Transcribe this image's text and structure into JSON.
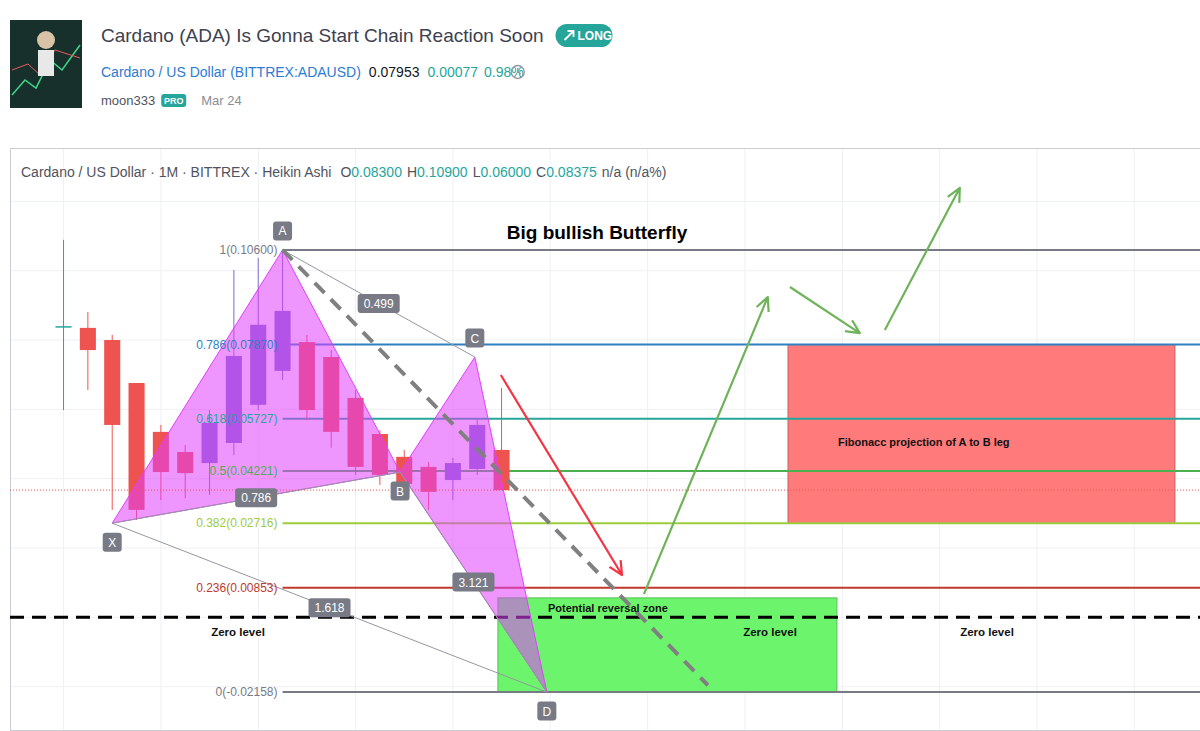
{
  "page": {
    "title": "Cardano (ADA) Is Gonna Start Chain Reaction Soon",
    "badge": "LONG",
    "symbol": "Cardano / US Dollar (BITTREX:ADAUSD)",
    "price": "0.07953",
    "change": "0.00077",
    "change_percent": "0.98%",
    "author": "moon333",
    "author_badge": "PRO",
    "date": "Mar 24"
  },
  "chart_data": {
    "type": "candlestick",
    "info": {
      "symbol": "Cardano / US Dollar · 1M · BITTREX · Heikin Ashi",
      "ohlc": [
        [
          "O",
          "0.08300"
        ],
        [
          "H",
          "0.10900"
        ],
        [
          "L",
          "0.06000"
        ],
        [
          "C",
          "0.08375"
        ]
      ],
      "tail": "n/a (n/a%)"
    },
    "x": [
      0,
      1,
      2,
      3,
      4,
      5,
      6,
      7,
      8,
      9,
      10,
      11,
      12,
      13,
      14,
      15,
      16,
      17,
      18
    ],
    "open": [
      0.084,
      0.0835,
      0.08,
      0.0676,
      0.0535,
      0.0477,
      0.0445,
      0.0503,
      0.0613,
      0.0711,
      0.0794,
      0.0751,
      0.0633,
      0.0529,
      0.0463,
      0.0434,
      0.0396,
      0.0428,
      0.0483
    ],
    "high": [
      0.1089,
      0.0881,
      0.0815,
      0.0676,
      0.0555,
      0.0497,
      0.0598,
      0.1002,
      0.1037,
      0.106,
      0.0815,
      0.0771,
      0.0656,
      0.054,
      0.0483,
      0.0448,
      0.046,
      0.0569,
      0.0662
    ],
    "low": [
      0.0598,
      0.0656,
      0.031,
      0.0281,
      0.0338,
      0.0344,
      0.0353,
      0.0468,
      0.0598,
      0.0685,
      0.0569,
      0.0489,
      0.0411,
      0.0382,
      0.0347,
      0.031,
      0.0338,
      0.0411,
      0.0367
    ],
    "close": [
      0.0836,
      0.0771,
      0.0555,
      0.031,
      0.0419,
      0.0416,
      0.0561,
      0.0754,
      0.0844,
      0.0884,
      0.0598,
      0.0535,
      0.0434,
      0.0411,
      0.0385,
      0.0362,
      0.0445,
      0.0555,
      0.0367
    ],
    "colors": [
      "#26a69a",
      "#ef5350",
      "#ef5350",
      "#ef5350",
      "#ef5350",
      "#ef5350",
      "#7e6bd0",
      "#7e6bd0",
      "#7e6bd0",
      "#7e6bd0",
      "#ef5350",
      "#ef5350",
      "#ef5350",
      "#ef5350",
      "#ef5350",
      "#ef5350",
      "#7e6bd0",
      "#7e6bd0",
      "#ef5350"
    ],
    "xlim": [
      -2.2,
      46.7
    ],
    "xticks": [
      0,
      4,
      8,
      12,
      16,
      20,
      24,
      28,
      32,
      36,
      40,
      44
    ],
    "ylim": [
      -0.0328,
      0.1354
    ],
    "yticks": [
      -0.02,
      0,
      0.02,
      0.04,
      0.06,
      0.08,
      0.1,
      0.12
    ],
    "grid": true,
    "tick_labels": false,
    "annotations": {
      "headline": "Big bullish Butterfly",
      "pattern": {
        "color": "#e040fb",
        "points": [
          {
            "label": "X",
            "x": 2,
            "y": 0.02716
          },
          {
            "label": "A",
            "x": 9,
            "y": 0.106
          },
          {
            "label": "B",
            "x": 13.83,
            "y": 0.0419
          },
          {
            "label": "C",
            "x": 16.9,
            "y": 0.0751
          },
          {
            "label": "D",
            "x": 19.86,
            "y": -0.02158
          }
        ],
        "ratios": [
          {
            "between": [
              "X",
              "B"
            ],
            "value": 0.786
          },
          {
            "between": [
              "A",
              "C"
            ],
            "value": 0.499
          },
          {
            "between": [
              "B",
              "D"
            ],
            "value": 3.121
          },
          {
            "between": [
              "X",
              "D"
            ],
            "value": 1.618
          }
        ]
      },
      "fib_levels": [
        {
          "label": "1(0.10600)",
          "value": 0.106,
          "color": "#787b86"
        },
        {
          "label": "0.786(0.07870)",
          "value": 0.0787,
          "color": "#2f7fc1"
        },
        {
          "label": "0.618(0.05727)",
          "value": 0.05727,
          "color": "#26a69a"
        },
        {
          "label": "0.5(0.04221)",
          "value": 0.04221,
          "color": "#4caf50"
        },
        {
          "label": "0.382(0.02716)",
          "value": 0.02716,
          "color": "#9ccc3c"
        },
        {
          "label": "0.236(0.00853)",
          "value": 0.00853,
          "color": "#c0392b"
        },
        {
          "label": "0(-0.02158)",
          "value": -0.02158,
          "color": "#787b86"
        }
      ],
      "zero_level": {
        "label": "Zero level",
        "value": 0,
        "color": "#000000",
        "line_style": "dashed"
      },
      "boxes": [
        {
          "label": "Potential reversal zone",
          "x": [
            17.85,
            31.78
          ],
          "y": [
            -0.02158,
            0.0056
          ],
          "color": "#6cf56c"
        },
        {
          "label": "Fibonacc projection of A to B leg",
          "x": [
            29.77,
            45.67
          ],
          "y": [
            0.02716,
            0.0787
          ],
          "color": "#ff7b7b"
        }
      ],
      "trend_line": {
        "x": [
          9,
          26.48
        ],
        "y": [
          0.106,
          -0.0196
        ],
        "color": "#808080",
        "line_style": "dashed"
      },
      "arrows": [
        {
          "x": [
            17.97,
            22.95
          ],
          "y": [
            0.0699,
            0.0122
          ],
          "color": "#f23645"
        },
        {
          "x": [
            23.85,
            28.94
          ],
          "y": [
            0.0067,
            0.0924
          ],
          "color": "#6fb35a"
        },
        {
          "x": [
            29.85,
            32.72
          ],
          "y": [
            0.0953,
            0.082
          ],
          "color": "#6fb35a"
        },
        {
          "x": [
            33.75,
            36.83
          ],
          "y": [
            0.0829,
            0.1239
          ],
          "color": "#6fb35a"
        }
      ]
    }
  }
}
